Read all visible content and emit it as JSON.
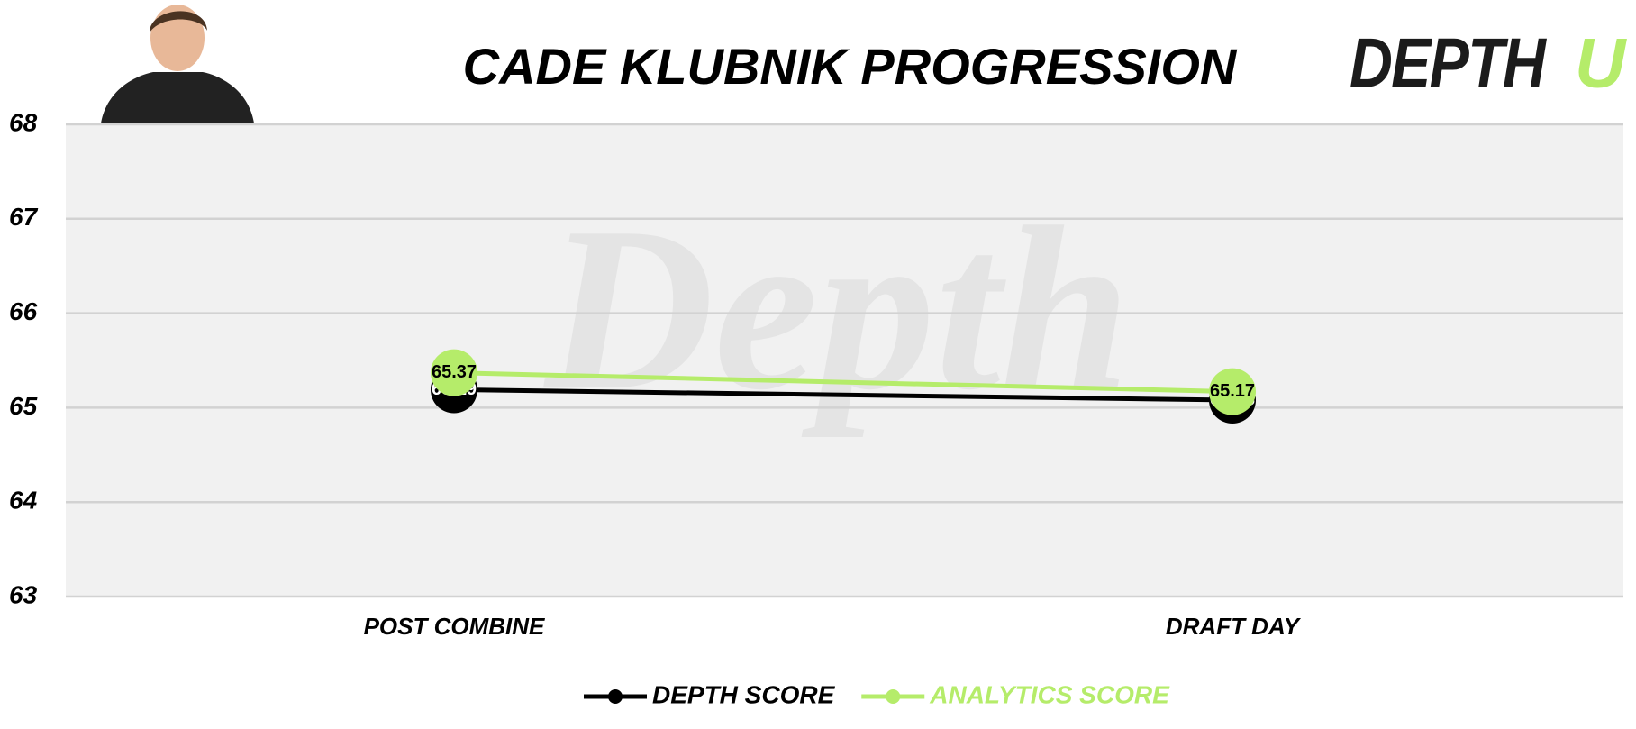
{
  "chart_data": {
    "type": "line",
    "title": "CADE KLUBNIK PROGRESSION",
    "logo": {
      "main": "DEPTH",
      "accent": "U"
    },
    "watermark": "Depth",
    "categories": [
      "POST COMBINE",
      "DRAFT DAY"
    ],
    "series": [
      {
        "name": "DEPTH SCORE",
        "color": "#000000",
        "values": [
          65.19,
          65.08
        ]
      },
      {
        "name": "ANALYTICS SCORE",
        "color": "#b5ec6a",
        "values": [
          65.37,
          65.17
        ]
      }
    ],
    "ylim": [
      63,
      68
    ],
    "yticks": [
      63,
      64,
      65,
      66,
      67,
      68
    ],
    "grid": true,
    "legend": "bottom"
  }
}
